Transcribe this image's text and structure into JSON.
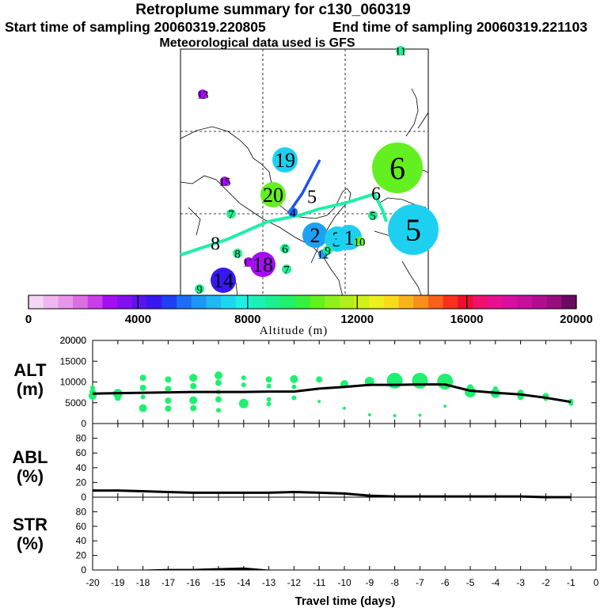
{
  "header": {
    "title": "Retroplume summary for c130_060319",
    "start": "Start time of sampling 20060319.220805",
    "end": "End time of sampling 20060319.221103",
    "met": "Meteorological data used is GFS"
  },
  "colorbar": {
    "ticks": [
      "0",
      "4000",
      "8000",
      "12000",
      "16000",
      "20000"
    ],
    "label": "Altitude (m)",
    "colors": [
      "#f6d6f6",
      "#f0b6f0",
      "#e896ea",
      "#dc6ee2",
      "#cc3ce8",
      "#a40ef0",
      "#8210ee",
      "#5c14ec",
      "#3818f0",
      "#1e40f4",
      "#1c6ef4",
      "#1e96f4",
      "#1eb8f2",
      "#1ed6f0",
      "#1ef0e4",
      "#1ef0b4",
      "#1ef090",
      "#20f06a",
      "#36f040",
      "#62f020",
      "#8ef01e",
      "#b0ee1c",
      "#d0f01c",
      "#eef01c",
      "#f8dc1c",
      "#f8b41c",
      "#f88e1c",
      "#f8601c",
      "#f8301c",
      "#ee0c30",
      "#f0106e",
      "#e81090",
      "#d610a0",
      "#c4109c",
      "#b00e90",
      "#960e80",
      "#6a0a60"
    ]
  },
  "map": {
    "dots": [
      {
        "label": "13",
        "color": "#a40ef0",
        "size": "small"
      },
      {
        "label": "19",
        "color": "#1ed0f0",
        "size": "medium"
      },
      {
        "label": "6",
        "color": "#62f020",
        "size": "large"
      },
      {
        "label": "15",
        "color": "#a40ef0",
        "size": "small"
      },
      {
        "label": "20",
        "color": "#62f020",
        "size": "medium"
      },
      {
        "label": "5",
        "color": "#ffffff",
        "size": "none"
      },
      {
        "label": "6",
        "color": "#ffffff",
        "size": "none"
      },
      {
        "label": "7",
        "color": "#1ef090",
        "size": "small"
      },
      {
        "label": "4",
        "color": "#1e6ef4",
        "size": "small"
      },
      {
        "label": "5",
        "color": "#1ef090",
        "size": "small"
      },
      {
        "label": "2",
        "color": "#1ea0f4",
        "size": "medium"
      },
      {
        "label": "3",
        "color": "#1ed0f0",
        "size": "medium"
      },
      {
        "label": "1",
        "color": "#1ed0f0",
        "size": "medium"
      },
      {
        "label": "5",
        "color": "#1ed0f0",
        "size": "large"
      },
      {
        "label": "8",
        "color": "#ffffff",
        "size": "none"
      },
      {
        "label": "6",
        "color": "#1ef090",
        "size": "small"
      },
      {
        "label": "8",
        "color": "#1ef090",
        "size": "small"
      },
      {
        "label": "17",
        "color": "#a40ef0",
        "size": "small"
      },
      {
        "label": "18",
        "color": "#a40ef0",
        "size": "medium"
      },
      {
        "label": "7",
        "color": "#1ef090",
        "size": "small"
      },
      {
        "label": "14",
        "color": "#3818f0",
        "size": "medium"
      },
      {
        "label": "9",
        "color": "#1ef090",
        "size": "small"
      },
      {
        "label": "11",
        "color": "#1ef090",
        "size": "small"
      },
      {
        "label": "12",
        "color": "#1e96f4",
        "size": "small"
      },
      {
        "label": "9",
        "color": "#1ef090",
        "size": "small"
      },
      {
        "label": "10",
        "color": "#62f020",
        "size": "small"
      }
    ]
  },
  "chart_data": [
    {
      "type": "scatter",
      "name": "ALT",
      "ylabel": "ALT (m)",
      "ylim": [
        0,
        20000
      ],
      "yticks": [
        0,
        5000,
        10000,
        15000,
        20000
      ],
      "xlim": [
        -20,
        0
      ],
      "mean_line": {
        "x": [
          -20,
          -19,
          -18,
          -17,
          -16,
          -15,
          -14,
          -13,
          -12,
          -11,
          -10,
          -9,
          -8,
          -7,
          -6,
          -5,
          -4,
          -3,
          -2,
          -1
        ],
        "y": [
          7200,
          7300,
          7400,
          7500,
          7600,
          7600,
          7600,
          7700,
          7700,
          8400,
          8800,
          9300,
          9300,
          9400,
          9400,
          7900,
          7400,
          7000,
          6200,
          5200
        ]
      },
      "points": [
        {
          "x": -20,
          "y": 6700,
          "s": 5
        },
        {
          "x": -20,
          "y": 7600,
          "s": 4
        },
        {
          "x": -20,
          "y": 8600,
          "s": 3
        },
        {
          "x": -19,
          "y": 7200,
          "s": 6
        },
        {
          "x": -19,
          "y": 6200,
          "s": 4
        },
        {
          "x": -18,
          "y": 11000,
          "s": 4
        },
        {
          "x": -18,
          "y": 8600,
          "s": 4
        },
        {
          "x": -18,
          "y": 6400,
          "s": 3
        },
        {
          "x": -18,
          "y": 3700,
          "s": 5
        },
        {
          "x": -17,
          "y": 10600,
          "s": 4
        },
        {
          "x": -17,
          "y": 8300,
          "s": 4
        },
        {
          "x": -17,
          "y": 5500,
          "s": 4
        },
        {
          "x": -17,
          "y": 3600,
          "s": 4
        },
        {
          "x": -16,
          "y": 11000,
          "s": 5
        },
        {
          "x": -16,
          "y": 9000,
          "s": 4
        },
        {
          "x": -16,
          "y": 5600,
          "s": 5
        },
        {
          "x": -16,
          "y": 3700,
          "s": 4
        },
        {
          "x": -15,
          "y": 11600,
          "s": 5
        },
        {
          "x": -15,
          "y": 9800,
          "s": 4
        },
        {
          "x": -15,
          "y": 7600,
          "s": 3
        },
        {
          "x": -15,
          "y": 5800,
          "s": 4
        },
        {
          "x": -15,
          "y": 3200,
          "s": 3
        },
        {
          "x": -14,
          "y": 11000,
          "s": 3
        },
        {
          "x": -14,
          "y": 9300,
          "s": 3
        },
        {
          "x": -14,
          "y": 4800,
          "s": 6
        },
        {
          "x": -13,
          "y": 10600,
          "s": 4
        },
        {
          "x": -13,
          "y": 9000,
          "s": 3
        },
        {
          "x": -13,
          "y": 5800,
          "s": 3
        },
        {
          "x": -13,
          "y": 4700,
          "s": 3
        },
        {
          "x": -12,
          "y": 10700,
          "s": 5
        },
        {
          "x": -12,
          "y": 8800,
          "s": 3
        },
        {
          "x": -12,
          "y": 6200,
          "s": 3
        },
        {
          "x": -11,
          "y": 10600,
          "s": 4
        },
        {
          "x": -11,
          "y": 5300,
          "s": 2
        },
        {
          "x": -10,
          "y": 9500,
          "s": 5
        },
        {
          "x": -10,
          "y": 3700,
          "s": 2
        },
        {
          "x": -9,
          "y": 10100,
          "s": 6
        },
        {
          "x": -9,
          "y": 2100,
          "s": 2
        },
        {
          "x": -8,
          "y": 10300,
          "s": 10
        },
        {
          "x": -8,
          "y": 1900,
          "s": 2
        },
        {
          "x": -7,
          "y": 10300,
          "s": 10
        },
        {
          "x": -7,
          "y": 2000,
          "s": 2
        },
        {
          "x": -6,
          "y": 10100,
          "s": 10
        },
        {
          "x": -6,
          "y": 4200,
          "s": 2
        },
        {
          "x": -5,
          "y": 8700,
          "s": 4
        },
        {
          "x": -5,
          "y": 7600,
          "s": 7
        },
        {
          "x": -4,
          "y": 8400,
          "s": 3
        },
        {
          "x": -4,
          "y": 7300,
          "s": 6
        },
        {
          "x": -3,
          "y": 7400,
          "s": 4
        },
        {
          "x": -3,
          "y": 6400,
          "s": 4
        },
        {
          "x": -2,
          "y": 6600,
          "s": 4
        },
        {
          "x": -2,
          "y": 6000,
          "s": 3
        },
        {
          "x": -1,
          "y": 5400,
          "s": 3
        },
        {
          "x": -1,
          "y": 4800,
          "s": 3
        }
      ]
    },
    {
      "type": "line",
      "name": "ABL",
      "ylabel": "ABL (%)",
      "ylim": [
        0,
        100
      ],
      "yticks": [
        0,
        20,
        40,
        60,
        80
      ],
      "x": [
        -20,
        -19,
        -18,
        -17,
        -16,
        -15,
        -14,
        -13,
        -12,
        -11,
        -10,
        -9,
        -8,
        -7,
        -6,
        -5,
        -4,
        -3,
        -2,
        -1
      ],
      "values": [
        9,
        9,
        8,
        7,
        6,
        6,
        6,
        6,
        7,
        6,
        5,
        2,
        1,
        1,
        1,
        1,
        1,
        1,
        0,
        0
      ]
    },
    {
      "type": "area",
      "name": "STR",
      "ylabel": "STR (%)",
      "ylim": [
        0,
        100
      ],
      "yticks": [
        0,
        20,
        40,
        60,
        80
      ],
      "x": [
        -20,
        -19,
        -18,
        -17,
        -16,
        -15,
        -14,
        -13,
        -12,
        -11,
        -10,
        -9,
        -8,
        -7,
        -6,
        -5,
        -4,
        -3,
        -2,
        -1
      ],
      "values": [
        0,
        0,
        0,
        1,
        1,
        2,
        3,
        0,
        0,
        0,
        0,
        0,
        0,
        0,
        0,
        0,
        0,
        0,
        0,
        0
      ]
    }
  ],
  "axis": {
    "xticks": [
      "-20",
      "-19",
      "-18",
      "-17",
      "-16",
      "-15",
      "-14",
      "-13",
      "-12",
      "-11",
      "-10",
      "-9",
      "-8",
      "-7",
      "-6",
      "-5",
      "-4",
      "-3",
      "-2",
      "-1",
      "0"
    ],
    "xlabel": "Travel time (days)"
  },
  "panel_labels": {
    "alt": [
      "ALT",
      "(m)"
    ],
    "abl": [
      "ABL",
      "(%)"
    ],
    "str": [
      "STR",
      "(%)"
    ]
  }
}
